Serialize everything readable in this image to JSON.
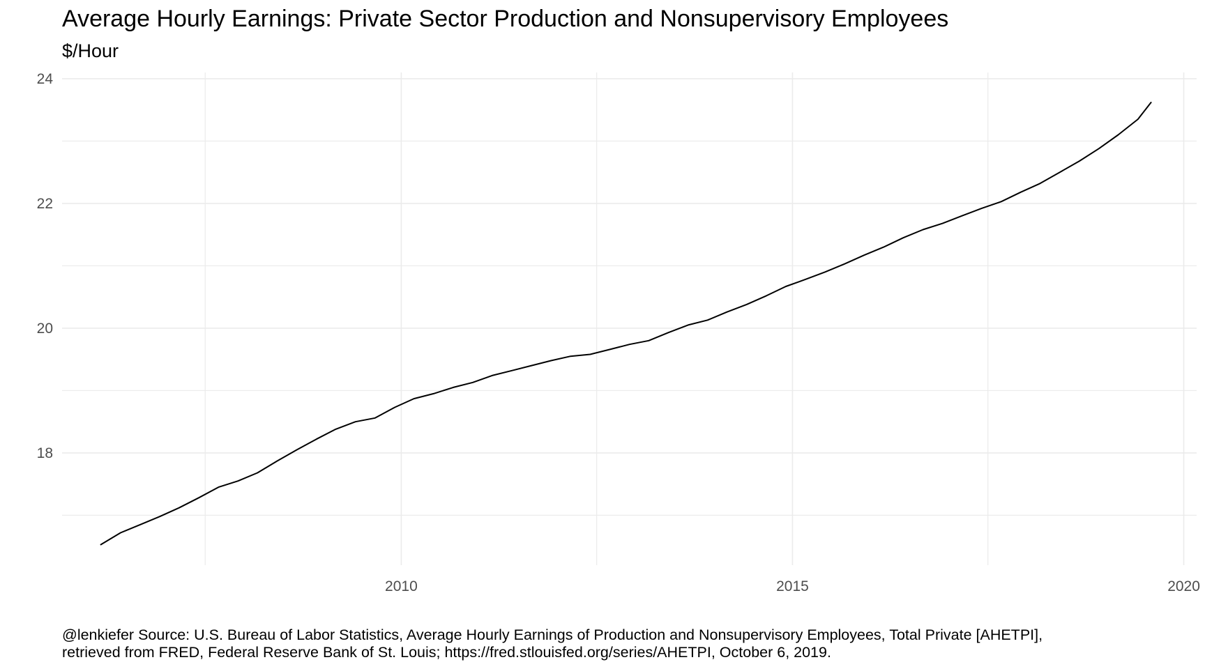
{
  "chart_data": {
    "type": "line",
    "title": "Average Hourly Earnings: Private Sector Production and Nonsupervisory Employees",
    "subtitle": "$/Hour",
    "xlabel": "",
    "ylabel": "",
    "caption_lines": [
      "@lenkiefer Source: U.S. Bureau of Labor Statistics, Average Hourly Earnings of Production and Nonsupervisory Employees, Total Private [AHETPI],",
      "retrieved from FRED, Federal Reserve Bank of St. Louis; https://fred.stlouisfed.org/series/AHETPI, October 6, 2019."
    ],
    "xlim": [
      "2005-09-01",
      "2020-03-01"
    ],
    "ylim": [
      16.2,
      24.1
    ],
    "x_ticks": [
      {
        "date": "2010-01-01",
        "label": "2010"
      },
      {
        "date": "2015-01-01",
        "label": "2015"
      },
      {
        "date": "2020-01-01",
        "label": "2020"
      }
    ],
    "x_minor_ticks": [
      "2007-07-01",
      "2012-07-01",
      "2017-07-01"
    ],
    "y_ticks": [
      18,
      20,
      22,
      24
    ],
    "y_minor_ticks": [
      17,
      19,
      21,
      23
    ],
    "grid": true,
    "line_color": "#000000",
    "grid_color": "#ebebeb",
    "series": [
      {
        "x": [
          "2006-03-01",
          "2006-06-01",
          "2006-09-01",
          "2006-12-01",
          "2007-03-01",
          "2007-06-01",
          "2007-09-01",
          "2007-12-01",
          "2008-03-01",
          "2008-06-01",
          "2008-09-01",
          "2008-12-01",
          "2009-03-01",
          "2009-06-01",
          "2009-09-01",
          "2009-12-01",
          "2010-03-01",
          "2010-06-01",
          "2010-09-01",
          "2010-12-01",
          "2011-03-01",
          "2011-06-01",
          "2011-09-01",
          "2011-12-01",
          "2012-03-01",
          "2012-06-01",
          "2012-09-01",
          "2012-12-01",
          "2013-03-01",
          "2013-06-01",
          "2013-09-01",
          "2013-12-01",
          "2014-03-01",
          "2014-06-01",
          "2014-09-01",
          "2014-12-01",
          "2015-03-01",
          "2015-06-01",
          "2015-09-01",
          "2015-12-01",
          "2016-03-01",
          "2016-06-01",
          "2016-09-01",
          "2016-12-01",
          "2017-03-01",
          "2017-06-01",
          "2017-09-01",
          "2017-12-01",
          "2018-03-01",
          "2018-06-01",
          "2018-09-01",
          "2018-12-01",
          "2019-03-01",
          "2019-06-01",
          "2019-08-01"
        ],
        "values": [
          16.53,
          16.72,
          16.85,
          16.98,
          17.12,
          17.28,
          17.45,
          17.55,
          17.68,
          17.87,
          18.05,
          18.22,
          18.38,
          18.5,
          18.56,
          18.73,
          18.87,
          18.95,
          19.05,
          19.13,
          19.24,
          19.32,
          19.4,
          19.48,
          19.55,
          19.58,
          19.66,
          19.74,
          19.8,
          19.93,
          20.05,
          20.13,
          20.26,
          20.38,
          20.52,
          20.67,
          20.78,
          20.9,
          21.03,
          21.17,
          21.3,
          21.45,
          21.58,
          21.68,
          21.8,
          21.92,
          22.03,
          22.18,
          22.32,
          22.5,
          22.68,
          22.88,
          23.1,
          23.35,
          23.62
        ]
      }
    ]
  }
}
